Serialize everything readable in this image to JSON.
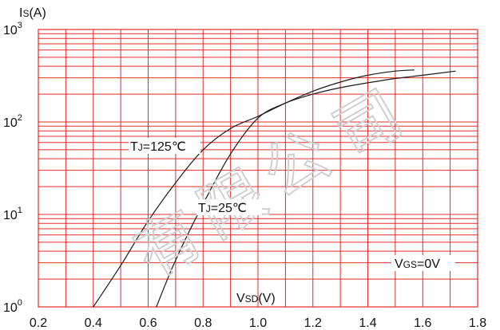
{
  "chart_data": {
    "type": "line",
    "title": "",
    "xlabel": {
      "base": "V",
      "sub": "SD",
      "unit": "(V)"
    },
    "ylabel": {
      "base": "I",
      "sub": "S",
      "unit": "(A)"
    },
    "xlim": [
      0.2,
      1.8
    ],
    "ylim": [
      1,
      1000
    ],
    "yscale": "log",
    "x_ticks": [
      "0.2",
      "0.4",
      "0.6",
      "0.8",
      "1.0",
      "1.2",
      "1.4",
      "1.6",
      "1.8"
    ],
    "y_ticks": [
      {
        "base": "10",
        "exp": "0"
      },
      {
        "base": "10",
        "exp": "1"
      },
      {
        "base": "10",
        "exp": "2"
      },
      {
        "base": "10",
        "exp": "3"
      }
    ],
    "grid": true,
    "grid_color": "#e32b2b",
    "curve_color": "#1a1a1a",
    "condition": {
      "base": "V",
      "sub": "GS",
      "rest": "=0V"
    },
    "series": [
      {
        "name": {
          "base": "T",
          "sub": "J",
          "rest": "=125℃"
        },
        "x": [
          0.4,
          0.5,
          0.6,
          0.7,
          0.8,
          0.9,
          1.0,
          1.1,
          1.2,
          1.3,
          1.4,
          1.5,
          1.57
        ],
        "y": [
          1,
          2.8,
          8.5,
          22,
          50,
          85,
          115,
          160,
          215,
          270,
          320,
          355,
          365
        ]
      },
      {
        "name": {
          "base": "T",
          "sub": "J",
          "rest": "=25℃"
        },
        "x": [
          0.63,
          0.7,
          0.8,
          0.9,
          1.0,
          1.1,
          1.2,
          1.3,
          1.4,
          1.5,
          1.6,
          1.72
        ],
        "y": [
          1,
          3.2,
          13,
          45,
          110,
          160,
          200,
          235,
          265,
          295,
          320,
          355
        ]
      }
    ]
  },
  "watermark": "有限公司"
}
